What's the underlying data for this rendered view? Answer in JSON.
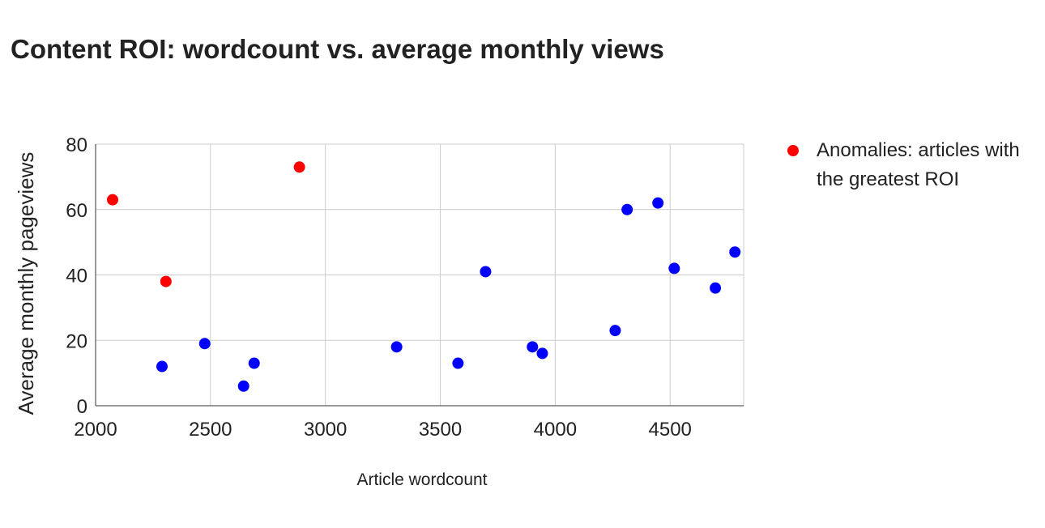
{
  "chart_data": {
    "type": "scatter",
    "title": "Content ROI: wordcount vs. average monthly views",
    "xlabel": "Article wordcount",
    "ylabel": "Average monthly pageviews",
    "xlim": [
      2000,
      4820
    ],
    "ylim": [
      0,
      80
    ],
    "xticks": [
      2000,
      2500,
      3000,
      3500,
      4000,
      4500
    ],
    "yticks": [
      0,
      20,
      40,
      60,
      80
    ],
    "grid": true,
    "legend_position": "right",
    "series": [
      {
        "name": "Anomalies: articles with the greatest ROI",
        "color": "#ff0000",
        "points": [
          [
            2074,
            63
          ],
          [
            2306,
            38
          ],
          [
            2887,
            73
          ]
        ]
      },
      {
        "name": "",
        "color": "#0000ff",
        "points": [
          [
            2289,
            12
          ],
          [
            2475,
            19
          ],
          [
            2644,
            6
          ],
          [
            2690,
            13
          ],
          [
            3310,
            18
          ],
          [
            3577,
            13
          ],
          [
            3697,
            41
          ],
          [
            3901,
            18
          ],
          [
            3944,
            16
          ],
          [
            4261,
            23
          ],
          [
            4313,
            60
          ],
          [
            4447,
            62
          ],
          [
            4518,
            42
          ],
          [
            4697,
            36
          ],
          [
            4782,
            47
          ]
        ]
      }
    ]
  }
}
